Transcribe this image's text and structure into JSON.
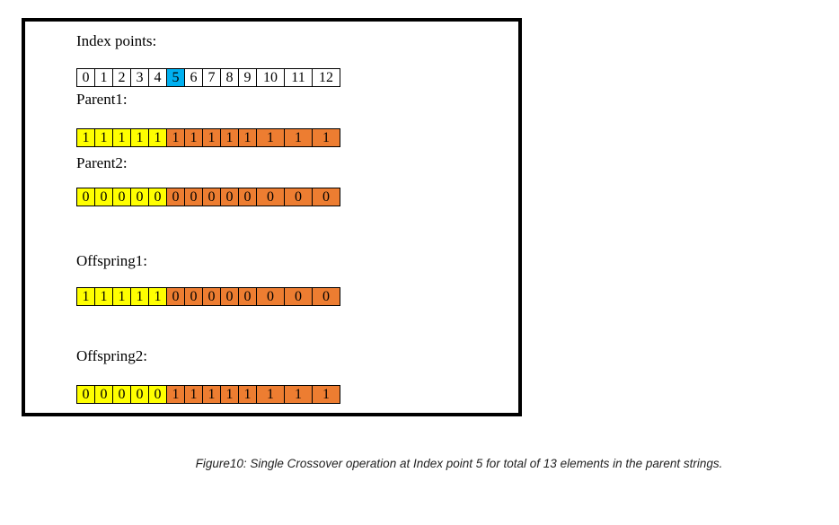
{
  "labels": {
    "index": "Index points:",
    "parent1": "Parent1:",
    "parent2": "Parent2:",
    "offspring1": "Offspring1:",
    "offspring2": "Offspring2:"
  },
  "colors": {
    "yellow": "#ffff00",
    "orange": "#ed7d31",
    "highlight": "#00b0f0",
    "white": "#ffffff"
  },
  "crossover_index": 5,
  "rows": {
    "index": [
      "0",
      "1",
      "2",
      "3",
      "4",
      "5",
      "6",
      "7",
      "8",
      "9",
      "10",
      "11",
      "12"
    ],
    "parent1": [
      "1",
      "1",
      "1",
      "1",
      "1",
      "1",
      "1",
      "1",
      "1",
      "1",
      "1",
      "1",
      "1"
    ],
    "parent2": [
      "0",
      "0",
      "0",
      "0",
      "0",
      "0",
      "0",
      "0",
      "0",
      "0",
      "0",
      "0",
      "0"
    ],
    "offspring1": [
      "1",
      "1",
      "1",
      "1",
      "1",
      "0",
      "0",
      "0",
      "0",
      "0",
      "0",
      "0",
      "0"
    ],
    "offspring2": [
      "0",
      "0",
      "0",
      "0",
      "0",
      "1",
      "1",
      "1",
      "1",
      "1",
      "1",
      "1",
      "1"
    ]
  },
  "caption": "Figure10: Single Crossover operation at Index point 5 for total of 13 elements in the parent strings."
}
